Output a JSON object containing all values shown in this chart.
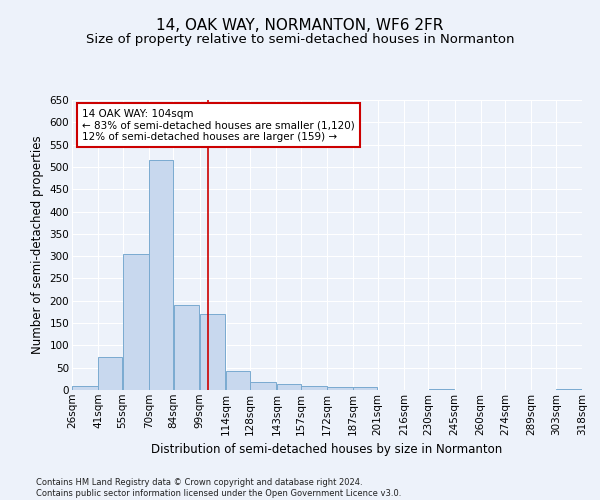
{
  "title": "14, OAK WAY, NORMANTON, WF6 2FR",
  "subtitle": "Size of property relative to semi-detached houses in Normanton",
  "xlabel": "Distribution of semi-detached houses by size in Normanton",
  "ylabel": "Number of semi-detached properties",
  "footnote": "Contains HM Land Registry data © Crown copyright and database right 2024.\nContains public sector information licensed under the Open Government Licence v3.0.",
  "bar_left_edges": [
    26,
    41,
    55,
    70,
    84,
    99,
    114,
    128,
    143,
    157,
    172,
    187,
    201,
    216,
    230,
    245,
    260,
    274,
    289,
    303
  ],
  "bar_widths": [
    15,
    14,
    15,
    14,
    15,
    15,
    14,
    15,
    14,
    15,
    15,
    14,
    15,
    14,
    15,
    15,
    14,
    15,
    14,
    15
  ],
  "bar_heights": [
    10,
    75,
    305,
    515,
    190,
    170,
    42,
    18,
    13,
    10,
    7,
    6,
    0,
    0,
    2,
    0,
    0,
    0,
    0,
    2
  ],
  "bar_color": "#c8d8ee",
  "bar_edge_color": "#7aaad0",
  "tick_labels": [
    "26sqm",
    "41sqm",
    "55sqm",
    "70sqm",
    "84sqm",
    "99sqm",
    "114sqm",
    "128sqm",
    "143sqm",
    "157sqm",
    "172sqm",
    "187sqm",
    "201sqm",
    "216sqm",
    "230sqm",
    "245sqm",
    "260sqm",
    "274sqm",
    "289sqm",
    "303sqm",
    "318sqm"
  ],
  "property_size": 104,
  "vline_color": "#cc0000",
  "annotation_text": "14 OAK WAY: 104sqm\n← 83% of semi-detached houses are smaller (1,120)\n12% of semi-detached houses are larger (159) →",
  "annotation_box_color": "#ffffff",
  "annotation_box_edge_color": "#cc0000",
  "ylim": [
    0,
    650
  ],
  "yticks": [
    0,
    50,
    100,
    150,
    200,
    250,
    300,
    350,
    400,
    450,
    500,
    550,
    600,
    650
  ],
  "background_color": "#edf2fa",
  "grid_color": "#ffffff",
  "title_fontsize": 11,
  "subtitle_fontsize": 9.5,
  "axis_label_fontsize": 8.5,
  "tick_fontsize": 7.5,
  "annotation_fontsize": 7.5
}
